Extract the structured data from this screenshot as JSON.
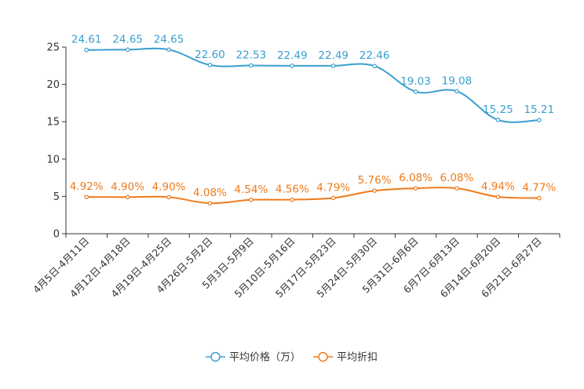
{
  "chart_data": {
    "type": "line",
    "title": "",
    "xlabel": "",
    "ylabel": "",
    "ylim": [
      0,
      25
    ],
    "yticks": [
      0,
      5,
      10,
      15,
      20,
      25
    ],
    "grid": false,
    "legend_position": "bottom-center",
    "categories": [
      "4月5日-4月11日",
      "4月12日-4月18日",
      "4月19日-4月25日",
      "4月26日-5月2日",
      "5月3日-5月9日",
      "5月10日-5月16日",
      "5月17日-5月23日",
      "5月24日-5月30日",
      "5月31日-6月6日",
      "6月7日-6月13日",
      "6月14日-6月20日",
      "6月21日-6月27日"
    ],
    "series": [
      {
        "name": "平均价格（万）",
        "color": "#3a9fcf",
        "values": [
          24.61,
          24.65,
          24.65,
          22.6,
          22.53,
          22.49,
          22.49,
          22.46,
          19.03,
          19.08,
          15.25,
          15.21
        ],
        "labels": [
          "24.61",
          "24.65",
          "24.65",
          "22.60",
          "22.53",
          "22.49",
          "22.49",
          "22.46",
          "19.03",
          "19.08",
          "15.25",
          "15.21"
        ]
      },
      {
        "name": "平均折扣",
        "color": "#f07a1a",
        "values": [
          4.92,
          4.9,
          4.9,
          4.08,
          4.54,
          4.56,
          4.79,
          5.76,
          6.08,
          6.08,
          4.94,
          4.77
        ],
        "labels": [
          "4.92%",
          "4.90%",
          "4.90%",
          "4.08%",
          "4.54%",
          "4.56%",
          "4.79%",
          "5.76%",
          "6.08%",
          "6.08%",
          "4.94%",
          "4.77%"
        ]
      }
    ]
  }
}
